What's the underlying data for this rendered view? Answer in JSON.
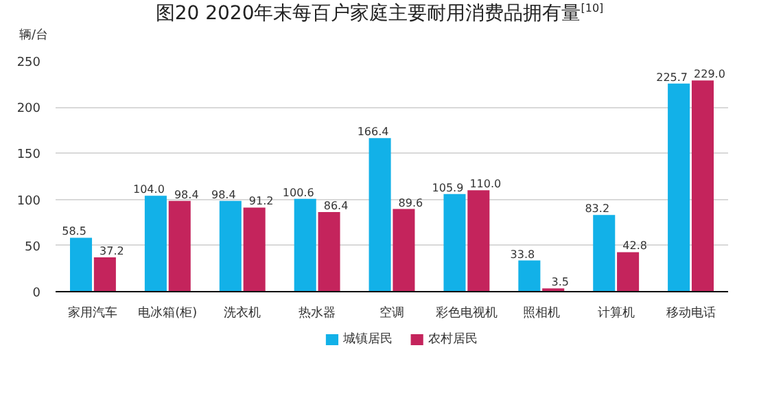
{
  "chart_data": {
    "type": "bar",
    "title": "图20 2020年末每百户家庭主要耐用消费品拥有量$^{[10]}$",
    "ylabel": "辆/台",
    "categories": [
      "家用汽车",
      "电冰箱(柜)",
      "洗衣机",
      "热水器",
      "空调",
      "彩色电视机",
      "照相机",
      "计算机",
      "移动电话"
    ],
    "series": [
      {
        "name": "城镇居民",
        "color": "#12b1e8",
        "values": [
          58.5,
          104.0,
          98.4,
          100.6,
          166.4,
          105.9,
          33.8,
          83.2,
          225.7
        ],
        "value_labels": [
          "58.5",
          "104.0",
          "98.4",
          "100.6",
          "166.4",
          "105.9",
          "33.8",
          "83.2",
          "225.7"
        ]
      },
      {
        "name": "农村居民",
        "color": "#c4245c",
        "values": [
          37.2,
          98.4,
          91.2,
          86.4,
          89.6,
          110.0,
          3.5,
          42.8,
          229.0
        ],
        "value_labels": [
          "37.2",
          "98.4",
          "91.2",
          "86.4",
          "89.6",
          "110.0",
          "3.5",
          "42.8",
          "229.0"
        ]
      }
    ],
    "ylim": [
      0,
      250
    ],
    "yticks": [
      0,
      50,
      100,
      150,
      200,
      250
    ],
    "grid": "y",
    "legend": "bottom"
  }
}
